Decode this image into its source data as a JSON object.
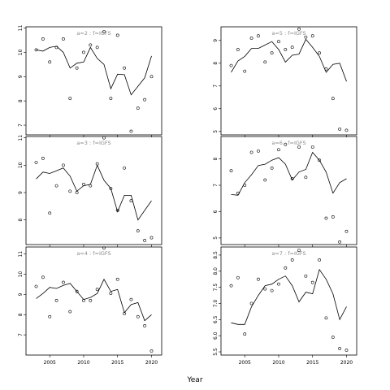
{
  "chart_data": {
    "type": "line",
    "xlabel": "Year",
    "xlim": [
      2001.5,
      2021.5
    ],
    "xticks": [
      2005,
      2010,
      2015,
      2020
    ],
    "panels": [
      {
        "title": "a=2 : f=IGFS",
        "ylim": [
          6.6,
          11.05
        ],
        "yticks": [
          7,
          8,
          9,
          10,
          11
        ],
        "line": {
          "x": [
            2003,
            2004,
            2005,
            2006,
            2007,
            2008,
            2009,
            2010,
            2011,
            2012,
            2013,
            2014,
            2015,
            2016,
            2017,
            2018,
            2019,
            2020
          ],
          "y": [
            10.1,
            10.05,
            10.2,
            10.25,
            10.0,
            9.35,
            9.55,
            9.6,
            10.2,
            9.75,
            9.5,
            8.5,
            9.1,
            9.08,
            8.25,
            8.6,
            8.95,
            9.85
          ]
        },
        "points": {
          "x": [
            2003,
            2004,
            2005,
            2006,
            2007,
            2008,
            2009,
            2010,
            2011,
            2012,
            2013,
            2014,
            2015,
            2016,
            2017,
            2018,
            2019,
            2020
          ],
          "y": [
            10.1,
            10.55,
            9.6,
            10.2,
            10.55,
            8.1,
            9.35,
            10.0,
            10.3,
            10.2,
            10.85,
            8.1,
            10.7,
            9.35,
            6.75,
            7.7,
            8.05,
            9.0
          ]
        }
      },
      {
        "title": "a=5 : f=IGFS",
        "ylim": [
          4.85,
          9.6
        ],
        "yticks": [
          5,
          6,
          7,
          8,
          9
        ],
        "line": {
          "x": [
            2003,
            2004,
            2005,
            2006,
            2007,
            2008,
            2009,
            2010,
            2011,
            2012,
            2013,
            2014,
            2015,
            2016,
            2017,
            2018,
            2019,
            2020
          ],
          "y": [
            7.6,
            8.1,
            8.3,
            8.65,
            8.65,
            8.8,
            8.95,
            8.6,
            8.05,
            8.35,
            8.4,
            9.05,
            8.7,
            8.3,
            7.6,
            7.95,
            8.0,
            7.2
          ]
        },
        "points": {
          "x": [
            2003,
            2004,
            2005,
            2006,
            2007,
            2008,
            2009,
            2010,
            2011,
            2012,
            2013,
            2014,
            2015,
            2016,
            2017,
            2018,
            2019,
            2020
          ],
          "y": [
            7.9,
            8.6,
            7.65,
            9.1,
            9.2,
            8.05,
            8.45,
            8.95,
            8.6,
            8.7,
            9.5,
            9.15,
            9.2,
            8.45,
            7.75,
            6.45,
            5.1,
            5.05
          ]
        }
      },
      {
        "title": "a=3 : f=IGFS",
        "ylim": [
          7.1,
          11.05
        ],
        "yticks": [
          8,
          9,
          10,
          11
        ],
        "line": {
          "x": [
            2003,
            2004,
            2005,
            2006,
            2007,
            2008,
            2009,
            2010,
            2011,
            2012,
            2013,
            2014,
            2015,
            2016,
            2017,
            2018,
            2019,
            2020
          ],
          "y": [
            9.5,
            9.75,
            9.7,
            9.8,
            9.9,
            9.6,
            9.05,
            9.25,
            9.3,
            10.0,
            9.45,
            9.15,
            8.3,
            8.9,
            8.9,
            8.0,
            8.35,
            8.7
          ]
        },
        "points": {
          "x": [
            2003,
            2004,
            2005,
            2006,
            2007,
            2008,
            2009,
            2010,
            2011,
            2012,
            2013,
            2014,
            2015,
            2016,
            2017,
            2018,
            2019,
            2020
          ],
          "y": [
            10.1,
            10.25,
            8.25,
            9.25,
            10.0,
            9.05,
            9.0,
            9.3,
            9.25,
            10.05,
            11.0,
            9.15,
            8.35,
            9.9,
            8.7,
            7.6,
            7.25,
            7.35
          ]
        }
      },
      {
        "title": "a=6 : f=IGFS",
        "ylim": [
          4.75,
          8.85
        ],
        "yticks": [
          5,
          6,
          7,
          8
        ],
        "line": {
          "x": [
            2003,
            2004,
            2005,
            2006,
            2007,
            2008,
            2009,
            2010,
            2011,
            2012,
            2013,
            2014,
            2015,
            2016,
            2017,
            2018,
            2019,
            2020
          ],
          "y": [
            6.65,
            6.62,
            7.1,
            7.4,
            7.75,
            7.8,
            7.95,
            8.05,
            7.8,
            7.2,
            7.5,
            7.6,
            8.25,
            7.95,
            7.5,
            6.7,
            7.1,
            7.25
          ]
        },
        "points": {
          "x": [
            2003,
            2004,
            2005,
            2006,
            2007,
            2008,
            2009,
            2010,
            2011,
            2012,
            2013,
            2014,
            2015,
            2016,
            2017,
            2018,
            2019,
            2020
          ],
          "y": [
            7.55,
            6.7,
            7.0,
            8.25,
            8.3,
            7.2,
            7.65,
            8.35,
            8.55,
            7.25,
            8.45,
            7.3,
            8.45,
            7.95,
            5.75,
            5.8,
            4.85,
            5.25
          ]
        }
      },
      {
        "title": "a=4 : f=IGFS",
        "ylim": [
          6.0,
          11.35
        ],
        "yticks": [
          7,
          8,
          9,
          10,
          11
        ],
        "line": {
          "x": [
            2003,
            2004,
            2005,
            2006,
            2007,
            2008,
            2009,
            2010,
            2011,
            2012,
            2013,
            2014,
            2015,
            2016,
            2017,
            2018,
            2019,
            2020
          ],
          "y": [
            8.8,
            9.05,
            9.35,
            9.3,
            9.45,
            9.55,
            9.15,
            8.75,
            8.85,
            9.05,
            9.75,
            9.15,
            9.25,
            8.1,
            8.5,
            8.6,
            7.7,
            8.0
          ]
        },
        "points": {
          "x": [
            2003,
            2004,
            2005,
            2006,
            2007,
            2008,
            2009,
            2010,
            2011,
            2012,
            2013,
            2014,
            2015,
            2016,
            2017,
            2018,
            2019,
            2020
          ],
          "y": [
            9.4,
            9.85,
            7.9,
            8.7,
            9.6,
            8.15,
            9.15,
            8.7,
            8.7,
            9.25,
            11.3,
            9.05,
            9.75,
            8.05,
            8.75,
            7.9,
            7.45,
            6.2
          ]
        }
      },
      {
        "title": "a=7 : f=IGFS",
        "ylim": [
          5.4,
          8.75
        ],
        "yticks": [
          5.5,
          6.0,
          6.5,
          7.0,
          7.5,
          8.0,
          8.5
        ],
        "line": {
          "x": [
            2003,
            2004,
            2005,
            2006,
            2007,
            2008,
            2009,
            2010,
            2011,
            2012,
            2013,
            2014,
            2015,
            2016,
            2017,
            2018,
            2019,
            2020
          ],
          "y": [
            6.4,
            6.35,
            6.35,
            6.9,
            7.25,
            7.55,
            7.6,
            7.75,
            7.85,
            7.55,
            7.05,
            7.35,
            7.3,
            8.05,
            7.75,
            7.3,
            6.5,
            6.9
          ]
        },
        "points": {
          "x": [
            2003,
            2004,
            2005,
            2006,
            2007,
            2008,
            2009,
            2010,
            2011,
            2012,
            2013,
            2014,
            2015,
            2016,
            2017,
            2018,
            2019,
            2020
          ],
          "y": [
            7.55,
            7.8,
            6.05,
            7.0,
            7.75,
            7.45,
            7.4,
            7.6,
            8.1,
            8.35,
            8.65,
            7.85,
            7.65,
            8.35,
            6.55,
            5.95,
            5.6,
            5.55
          ]
        }
      }
    ]
  }
}
